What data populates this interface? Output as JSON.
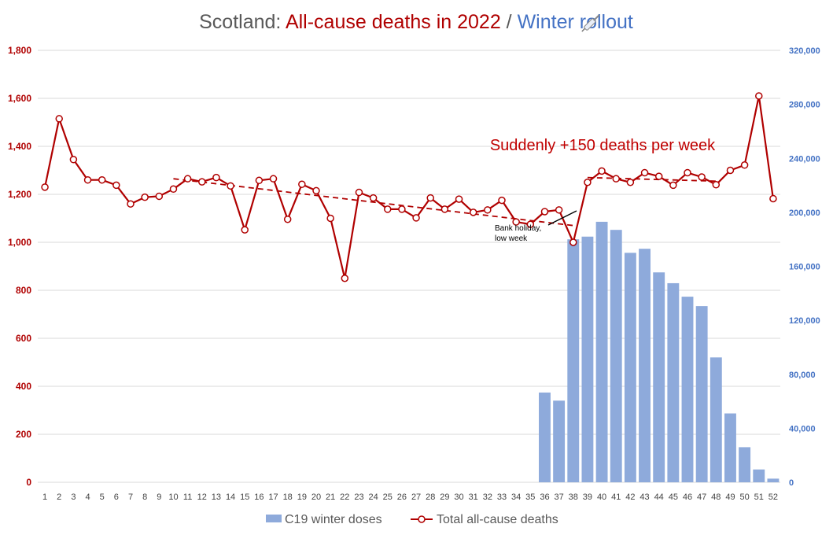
{
  "title": {
    "part1": "Scotland: ",
    "part2": "All-cause deaths in 2022",
    "part3": " / ",
    "part4": "Winter",
    "icon": "syringe-icon",
    "part5": " rollout"
  },
  "colors": {
    "title_gray": "#595959",
    "deaths_red": "#b00000",
    "doses_blue": "#8eaadb",
    "axis_blue": "#4472c4",
    "grid": "#d9d9d9"
  },
  "annotations": {
    "headline": "Suddenly +150 deaths per week",
    "bank_holiday_line1": "Bank holiday,",
    "bank_holiday_line2": "low week"
  },
  "legend": {
    "doses_label": "C19 winter doses",
    "deaths_label": "Total all-cause deaths"
  },
  "chart_data": {
    "type": "bar+line",
    "x": [
      1,
      2,
      3,
      4,
      5,
      6,
      7,
      8,
      9,
      10,
      11,
      12,
      13,
      14,
      15,
      16,
      17,
      18,
      19,
      20,
      21,
      22,
      23,
      24,
      25,
      26,
      27,
      28,
      29,
      30,
      31,
      32,
      33,
      34,
      35,
      36,
      37,
      38,
      39,
      40,
      41,
      42,
      43,
      44,
      45,
      46,
      47,
      48,
      49,
      50,
      51,
      52
    ],
    "left_axis": {
      "ylim": [
        0,
        1800
      ],
      "ticks": [
        "0",
        "200",
        "400",
        "600",
        "800",
        "1,000",
        "1,200",
        "1,400",
        "1,600",
        "1,800"
      ]
    },
    "right_axis": {
      "ylim": [
        0,
        320000
      ],
      "ticks": [
        "0",
        "40,000",
        "80,000",
        "120,000",
        "160,000",
        "200,000",
        "240,000",
        "280,000",
        "320,000"
      ]
    },
    "grid": true,
    "legend_position": "bottom",
    "series": [
      {
        "name": "C19 winter doses",
        "type": "bar",
        "axis": "right",
        "values": [
          0,
          0,
          0,
          0,
          0,
          0,
          0,
          0,
          0,
          0,
          0,
          0,
          0,
          0,
          0,
          0,
          0,
          0,
          0,
          0,
          0,
          0,
          0,
          0,
          0,
          0,
          0,
          0,
          0,
          0,
          0,
          0,
          0,
          0,
          0,
          66500,
          60500,
          180000,
          182000,
          193000,
          187000,
          170000,
          173000,
          155500,
          147500,
          137500,
          130500,
          92500,
          51000,
          26000,
          9500,
          2700
        ]
      },
      {
        "name": "Total all-cause deaths",
        "type": "line",
        "axis": "left",
        "values": [
          1230,
          1515,
          1345,
          1260,
          1260,
          1238,
          1160,
          1188,
          1192,
          1222,
          1265,
          1252,
          1270,
          1235,
          1052,
          1258,
          1265,
          1096,
          1242,
          1215,
          1100,
          850,
          1208,
          1185,
          1138,
          1138,
          1102,
          1185,
          1138,
          1180,
          1125,
          1135,
          1175,
          1085,
          1075,
          1128,
          1135,
          1000,
          1250,
          1297,
          1265,
          1250,
          1290,
          1275,
          1238,
          1290,
          1272,
          1240,
          1300,
          1322,
          1610,
          1182
        ]
      }
    ],
    "trendlines": [
      {
        "x": [
          10,
          38
        ],
        "y": [
          1265,
          1070
        ]
      },
      {
        "x": [
          39,
          48
        ],
        "y": [
          1270,
          1255
        ]
      }
    ]
  }
}
